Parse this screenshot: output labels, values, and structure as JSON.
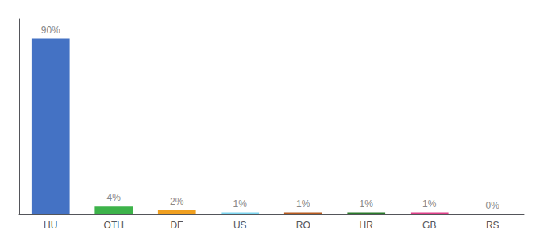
{
  "chart_data": {
    "type": "bar",
    "categories": [
      "HU",
      "OTH",
      "DE",
      "US",
      "RO",
      "HR",
      "GB",
      "RS"
    ],
    "values": [
      90,
      4,
      2,
      1,
      1,
      1,
      1,
      0
    ],
    "value_labels": [
      "90%",
      "4%",
      "2%",
      "1%",
      "1%",
      "1%",
      "1%",
      "0%"
    ],
    "colors": [
      "#4472c4",
      "#3db34a",
      "#f0a020",
      "#7dd6f0",
      "#b85c20",
      "#2a7a2a",
      "#e0408a",
      "#aaaaaa"
    ],
    "ylim": [
      0,
      100
    ],
    "yticks": [],
    "grid": false,
    "data_labels": true,
    "tick_labels": "x"
  }
}
